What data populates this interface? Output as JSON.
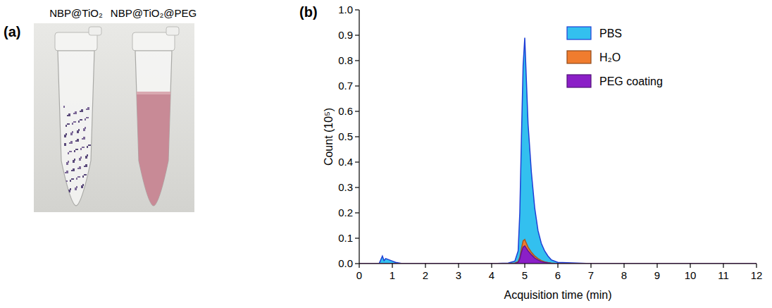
{
  "photo": {
    "panel_label": "(a)",
    "labels": [
      "NBP@TiO₂",
      "NBP@TiO₂@PEG"
    ]
  },
  "chart_data": {
    "type": "area",
    "panel_label": "(b)",
    "x_label": "Acquisition time (min)",
    "y_label": "Count (10⁵)",
    "x": [
      0,
      0.6,
      0.7,
      0.75,
      0.8,
      0.9,
      1.0,
      1.1,
      1.3,
      2,
      3,
      4,
      4.5,
      4.7,
      4.8,
      4.85,
      4.9,
      4.95,
      5.0,
      5.05,
      5.1,
      5.2,
      5.3,
      5.4,
      5.5,
      5.6,
      5.7,
      5.8,
      6,
      7,
      8,
      9,
      10,
      11,
      12
    ],
    "series": [
      {
        "name": "PBS",
        "color": "#33c0ef",
        "values": [
          0,
          0,
          0.03,
          0.012,
          0.02,
          0.015,
          0.01,
          0.005,
          0,
          0,
          0,
          0,
          0.002,
          0.01,
          0.05,
          0.2,
          0.5,
          0.78,
          0.89,
          0.72,
          0.55,
          0.36,
          0.22,
          0.13,
          0.08,
          0.05,
          0.03,
          0.015,
          0.005,
          0,
          0,
          0,
          0,
          0,
          0
        ]
      },
      {
        "name": "H₂O",
        "color": "#f07c2e",
        "values": [
          0,
          0,
          0,
          0,
          0,
          0,
          0,
          0,
          0,
          0,
          0,
          0,
          0,
          0.002,
          0.008,
          0.025,
          0.06,
          0.09,
          0.095,
          0.08,
          0.065,
          0.045,
          0.03,
          0.02,
          0.012,
          0.007,
          0.004,
          0.002,
          0,
          0,
          0,
          0,
          0,
          0,
          0
        ]
      },
      {
        "name": "PEG coating",
        "color": "#8b1fc7",
        "values": [
          0,
          0,
          0,
          0,
          0,
          0,
          0,
          0,
          0,
          0,
          0,
          0,
          0,
          0.001,
          0.005,
          0.018,
          0.045,
          0.065,
          0.07,
          0.06,
          0.05,
          0.035,
          0.022,
          0.014,
          0.008,
          0.005,
          0.003,
          0.001,
          0,
          0,
          0,
          0,
          0,
          0,
          0
        ]
      }
    ],
    "xlim": [
      0,
      12
    ],
    "xticks": [
      0,
      1,
      2,
      3,
      4,
      5,
      6,
      7,
      8,
      9,
      10,
      11,
      12
    ],
    "ylim": [
      0,
      1.0
    ],
    "yticks": [
      {
        "value": 0,
        "label": "0.0"
      },
      0.1,
      0.2,
      0.3,
      0.4,
      0.5,
      0.6,
      0.7,
      0.8,
      0.9,
      {
        "value": 1.0,
        "label": "1.0"
      }
    ],
    "legend": "top-right"
  }
}
